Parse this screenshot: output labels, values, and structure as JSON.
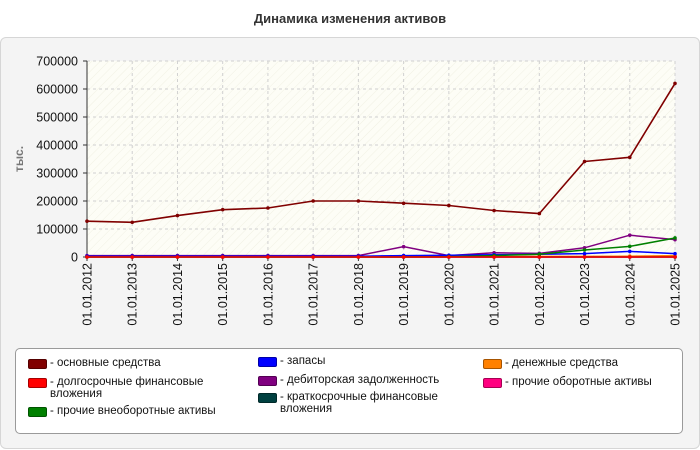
{
  "title": "Динамика изменения активов",
  "chart_data": {
    "type": "line",
    "title": "Динамика изменения активов",
    "xlabel": "",
    "ylabel": "тыс.",
    "ylim": [
      0,
      700000
    ],
    "y_ticks": [
      "0",
      "100000",
      "200000",
      "300000",
      "400000",
      "500000",
      "600000",
      "700000"
    ],
    "categories": [
      "01.01.2012",
      "01.01.2013",
      "01.01.2014",
      "01.01.2015",
      "01.01.2016",
      "01.01.2017",
      "01.01.2018",
      "01.01.2019",
      "01.01.2020",
      "01.01.2021",
      "01.01.2022",
      "01.01.2023",
      "01.01.2024",
      "01.01.2025"
    ],
    "grid": true,
    "legend_position": "bottom",
    "series": [
      {
        "name": "- основные средства",
        "color": "#800000",
        "values": [
          128000,
          124000,
          148000,
          169000,
          175000,
          200000,
          200000,
          192000,
          184000,
          166000,
          155000,
          341000,
          356000,
          620000
        ]
      },
      {
        "name": "- долгосрочные финансовые вложения",
        "color": "#ff0000",
        "values": [
          0,
          0,
          0,
          0,
          0,
          0,
          0,
          0,
          0,
          0,
          0,
          0,
          0,
          0
        ]
      },
      {
        "name": "- прочие внеоборотные активы",
        "color": "#008000",
        "values": [
          0,
          0,
          0,
          0,
          0,
          0,
          0,
          0,
          1000,
          5000,
          10000,
          25000,
          38000,
          68000
        ]
      },
      {
        "name": "- запасы",
        "color": "#0000ff",
        "values": [
          3000,
          3000,
          3000,
          3000,
          3000,
          3000,
          3000,
          5000,
          6000,
          8000,
          10000,
          12000,
          20000,
          12000
        ]
      },
      {
        "name": "- дебиторская задолженность",
        "color": "#800080",
        "values": [
          5000,
          5000,
          5000,
          5000,
          5000,
          5000,
          5000,
          37000,
          5000,
          15000,
          13000,
          33000,
          78000,
          62000
        ]
      },
      {
        "name": "- краткосрочные финансовые вложения",
        "color": "#004040",
        "values": [
          0,
          0,
          0,
          0,
          0,
          0,
          0,
          0,
          0,
          0,
          0,
          0,
          0,
          0
        ]
      },
      {
        "name": "- денежные средства",
        "color": "#ff8000",
        "values": [
          1000,
          1000,
          1000,
          1000,
          1000,
          1000,
          1000,
          1000,
          1000,
          1000,
          2000,
          2000,
          3000,
          5000
        ]
      },
      {
        "name": "- прочие оборотные активы",
        "color": "#ff0080",
        "values": [
          0,
          0,
          0,
          0,
          0,
          0,
          0,
          0,
          0,
          0,
          0,
          0,
          0,
          0
        ]
      }
    ]
  }
}
